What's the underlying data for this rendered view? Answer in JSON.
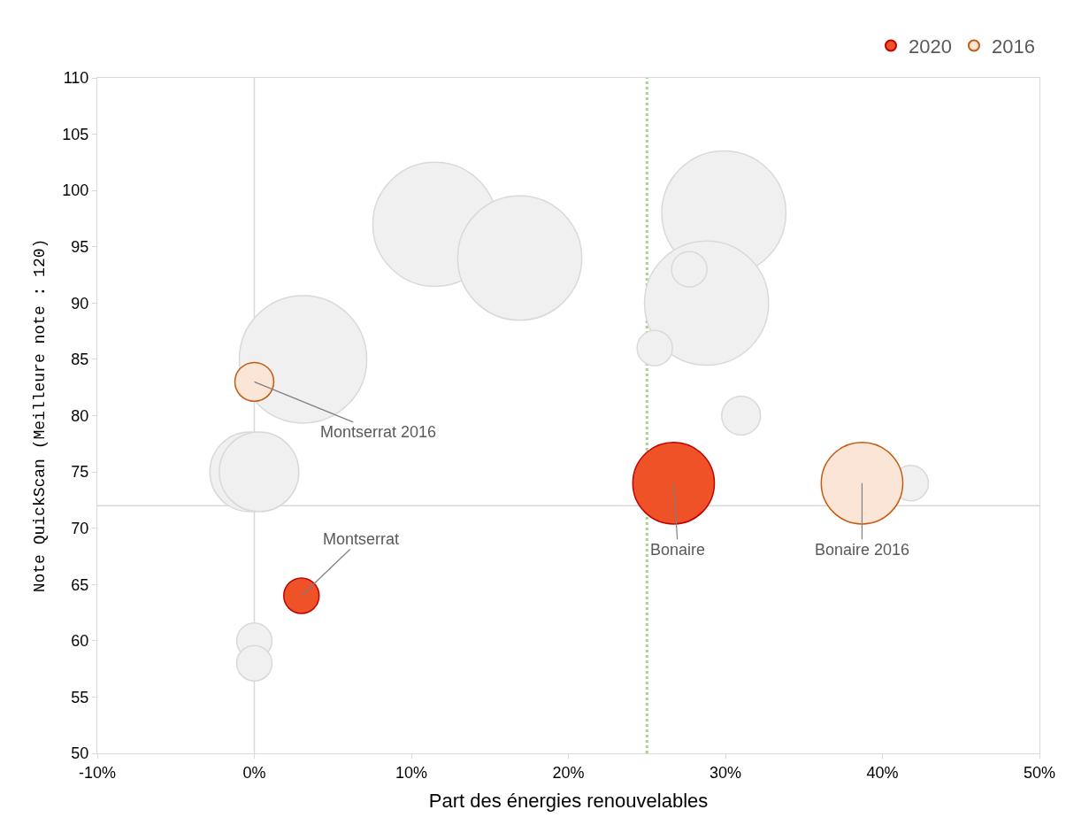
{
  "chart_data": {
    "type": "bubble",
    "xlabel": "Part des énergies renouvelables",
    "ylabel": "Note QuickScan (Meilleure note : 120)",
    "xlim": [
      -10,
      50
    ],
    "xticks": [
      {
        "value": -10,
        "label": "-10%"
      },
      {
        "value": 0,
        "label": "0%"
      },
      {
        "value": 10,
        "label": "10%"
      },
      {
        "value": 20,
        "label": "20%"
      },
      {
        "value": 30,
        "label": "30%"
      },
      {
        "value": 40,
        "label": "40%"
      },
      {
        "value": 50,
        "label": "50%"
      }
    ],
    "ylim": [
      50,
      110
    ],
    "yticks": [
      50,
      55,
      60,
      65,
      70,
      75,
      80,
      85,
      90,
      95,
      100,
      105,
      110
    ],
    "grid": false,
    "legend": "top right",
    "series": [
      {
        "color": "#f0f0f0",
        "x": [
          11.5,
          16.9,
          29.9,
          28.8,
          27.7,
          25.5,
          31.0,
          41.8,
          3.1,
          -0.3,
          0.3,
          0.0,
          0.0
        ],
        "values": [
          97,
          94,
          98,
          90,
          93,
          86,
          80,
          74,
          85,
          75,
          75,
          60,
          58
        ],
        "sizes": [
          0.95,
          0.95,
          0.95,
          0.95,
          0.077,
          0.077,
          0.093,
          0.077,
          1,
          0.39,
          0.39,
          0.077,
          0.077
        ]
      },
      {
        "name": "2020",
        "color": "#f05228",
        "x": [
          3.0,
          26.7
        ],
        "values": [
          64,
          74
        ],
        "sizes": [
          0.077,
          0.41
        ]
      },
      {
        "name": "2016",
        "color": "#fbe5d6",
        "x": [
          0.0,
          38.7
        ],
        "values": [
          83,
          74
        ],
        "sizes": [
          0.093,
          0.41
        ]
      }
    ],
    "ref_lines": [
      {
        "axis": "y",
        "value": 72,
        "color": "#d9d9d9",
        "line_style": "solid"
      },
      {
        "axis": "x",
        "value": 0,
        "color": "#d9d9d9",
        "line_style": "solid"
      },
      {
        "axis": "x",
        "value": 25,
        "color": "#a9d18e",
        "line_style": "dotted"
      }
    ],
    "annotations": [
      {
        "text": "Montserrat 2016",
        "x": 0.0,
        "y": 83
      },
      {
        "text": "Montserrat",
        "x": 3.0,
        "y": 64
      },
      {
        "text": "Bonaire",
        "x": 26.7,
        "y": 74
      },
      {
        "text": "Bonaire 2016",
        "x": 38.7,
        "y": 74
      }
    ]
  }
}
